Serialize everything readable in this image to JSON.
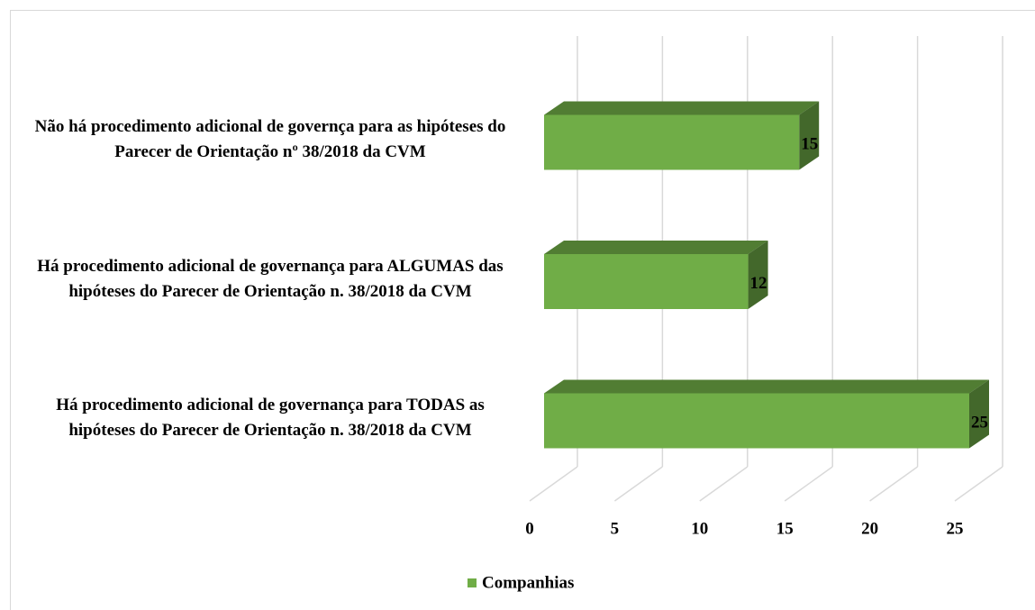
{
  "chart_data": {
    "type": "bar3d_horizontal",
    "categories": [
      "Não há procedimento adicional de governça para as hipóteses do Parecer de Orientação nº 38/2018 da CVM",
      "Há procedimento adicional de governança para ALGUMAS  das hipóteses do Parecer de Orientação n. 38/2018 da CVM",
      "Há procedimento adicional de governança para TODAS as hipóteses do Parecer de Orientação n. 38/2018 da CVM"
    ],
    "series": [
      {
        "name": "Companhias",
        "color": "#70ad47",
        "values": [
          15,
          12,
          25
        ]
      }
    ],
    "xlim": [
      0,
      25
    ],
    "xticks": [
      0,
      5,
      10,
      15,
      20,
      25
    ],
    "grid": true,
    "legend": "bottom"
  }
}
